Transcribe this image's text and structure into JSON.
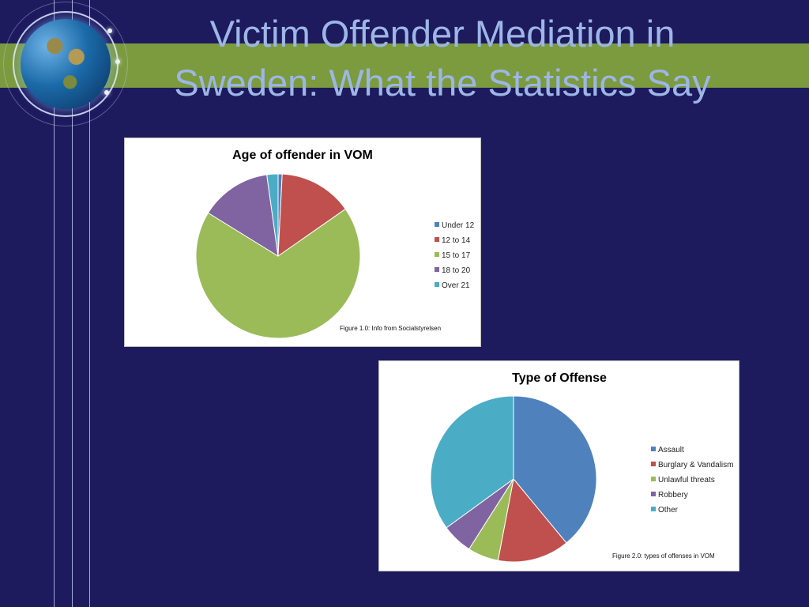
{
  "slide": {
    "title_line1": "Victim Offender Mediation in",
    "title_line2": "Sweden: What the Statistics Say"
  },
  "theme": {
    "background": "#1d1a5e",
    "band": "#7b9b3e",
    "title_color": "#9db6e6"
  },
  "chart_data": [
    {
      "type": "pie",
      "title": "Age of offender in VOM",
      "categories": [
        "Under 12",
        "12 to 14",
        "15 to 17",
        "18 to 20",
        "Over 21"
      ],
      "values": [
        0.8,
        14.5,
        68.5,
        14.0,
        2.2
      ],
      "colors": [
        "#4f81bd",
        "#c0504d",
        "#9bbb59",
        "#8064a2",
        "#4bacc6"
      ],
      "legend": "right",
      "caption": "Figure 1.0: Info from Socialstyrelsen"
    },
    {
      "type": "pie",
      "title": "Type of Offense",
      "categories": [
        "Assault",
        "Burglary & Vandalism",
        "Unlawful threats",
        "Robbery",
        "Other"
      ],
      "values": [
        39,
        14,
        6,
        6,
        35
      ],
      "colors": [
        "#4f81bd",
        "#c0504d",
        "#9bbb59",
        "#8064a2",
        "#4bacc6"
      ],
      "legend": "right",
      "caption": "Figure 2.0: types of offenses in VOM"
    }
  ]
}
